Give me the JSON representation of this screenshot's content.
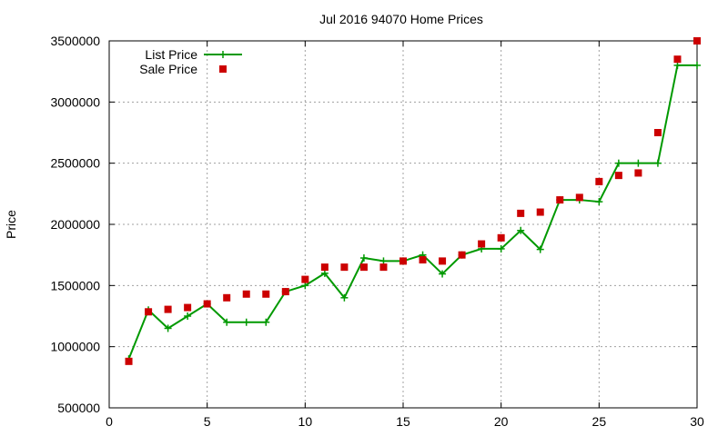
{
  "chart_data": {
    "type": "line",
    "title": "Jul 2016 94070 Home Prices",
    "xlabel": "",
    "ylabel": "Price",
    "xlim": [
      0,
      30
    ],
    "ylim": [
      500000,
      3500000
    ],
    "xticks": [
      "0",
      "5",
      "10",
      "15",
      "20",
      "25",
      "30"
    ],
    "yticks": [
      "500000",
      "1000000",
      "1500000",
      "2000000",
      "2500000",
      "3000000",
      "3500000"
    ],
    "grid": true,
    "legend_position": "top-left",
    "series": [
      {
        "name": "List Price",
        "style": "line+cross",
        "color": "#009900",
        "x": [
          1,
          2,
          3,
          4,
          5,
          6,
          7,
          8,
          9,
          10,
          11,
          12,
          13,
          14,
          15,
          16,
          17,
          18,
          19,
          20,
          21,
          22,
          23,
          24,
          25,
          26,
          27,
          28,
          29,
          30
        ],
        "values": [
          900000,
          1300000,
          1150000,
          1250000,
          1350000,
          1200000,
          1200000,
          1200000,
          1450000,
          1500000,
          1600000,
          1400000,
          1725000,
          1700000,
          1700000,
          1750000,
          1595000,
          1750000,
          1800000,
          1800000,
          1950000,
          1795000,
          2200000,
          2200000,
          2185000,
          2500000,
          2500000,
          2500000,
          3300000,
          3300000
        ]
      },
      {
        "name": "Sale Price",
        "style": "square",
        "color": "#cc0000",
        "x": [
          1,
          2,
          3,
          4,
          5,
          6,
          7,
          8,
          9,
          10,
          11,
          12,
          13,
          14,
          15,
          16,
          17,
          18,
          19,
          20,
          21,
          22,
          23,
          24,
          25,
          26,
          27,
          28,
          29,
          30
        ],
        "values": [
          880000,
          1285000,
          1305000,
          1320000,
          1350000,
          1400000,
          1430000,
          1430000,
          1450000,
          1550000,
          1650000,
          1650000,
          1650000,
          1650000,
          1700000,
          1710000,
          1700000,
          1750000,
          1840000,
          1890000,
          2090000,
          2100000,
          2200000,
          2220000,
          2350000,
          2400000,
          2420000,
          2750000,
          3350000,
          3500000
        ]
      }
    ]
  }
}
